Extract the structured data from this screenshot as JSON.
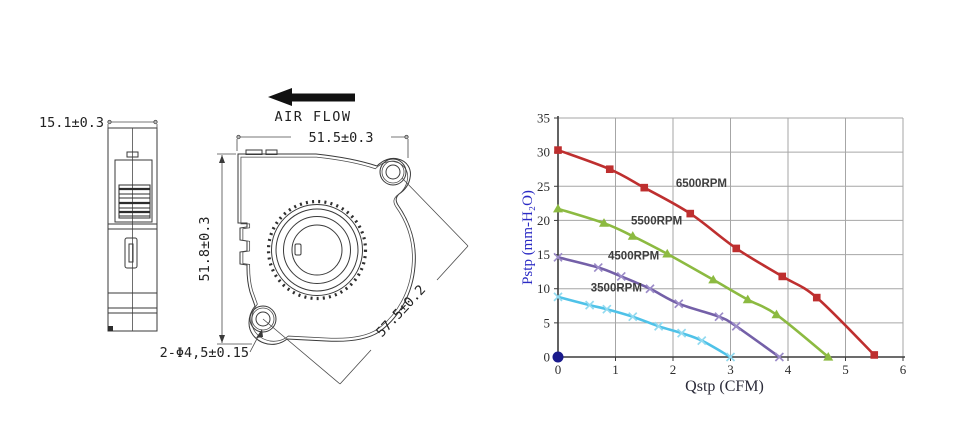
{
  "drawing": {
    "side_width_dim": "15.1±0.3",
    "air_flow_label": "AIR FLOW",
    "front_width_dim": "51.5±0.3",
    "front_height_dim": "51.8±0.3",
    "mount_hole_pitch_dim": "57.5±0.2",
    "mount_hole_dim": "2-Φ4,5±0.15"
  },
  "chart_data": {
    "type": "line",
    "title": "",
    "xlabel": "Qstp (CFM)",
    "ylabel": "Pstp (mm-H₂O)",
    "xlim": [
      0,
      6
    ],
    "ylim": [
      0,
      35
    ],
    "xticks": [
      0,
      1,
      2,
      3,
      4,
      5,
      6
    ],
    "yticks": [
      0,
      5,
      10,
      15,
      20,
      25,
      30,
      35
    ],
    "grid": true,
    "legend_position": "inline-labels",
    "colors": {
      "grid": "#a6a6a6",
      "axis": "#3c3c3c",
      "tick_text": "#2e2e2e",
      "xlabel_text": "#2a2a38",
      "ylabel_text": "#2b2bc4",
      "series_label_text": "#3e3e3e",
      "origin_dot": "#1a1a8c"
    },
    "origin_point": [
      0,
      0
    ],
    "series": [
      {
        "name": "6500RPM",
        "color": "#be2f2f",
        "marker": "square",
        "marker_color": "#be2f2f",
        "label_pos": [
          2.05,
          24.9
        ],
        "points": [
          [
            0,
            30.3
          ],
          [
            0.9,
            27.5
          ],
          [
            1.5,
            24.8
          ],
          [
            2.3,
            21.0
          ],
          [
            3.1,
            15.9
          ],
          [
            3.9,
            11.8
          ],
          [
            4.5,
            8.7
          ],
          [
            5.5,
            0.3
          ]
        ]
      },
      {
        "name": "5500RPM",
        "color": "#8cba41",
        "marker": "triangle",
        "marker_color": "#8cba41",
        "label_pos": [
          1.27,
          19.4
        ],
        "points": [
          [
            0,
            21.7
          ],
          [
            0.8,
            19.6
          ],
          [
            1.3,
            17.7
          ],
          [
            1.9,
            15.1
          ],
          [
            2.7,
            11.3
          ],
          [
            3.3,
            8.4
          ],
          [
            3.8,
            6.2
          ],
          [
            4.7,
            0
          ]
        ]
      },
      {
        "name": "4500RPM",
        "color": "#7460a8",
        "marker": "x",
        "marker_color": "#9c8cc8",
        "label_pos": [
          0.87,
          14.3
        ],
        "points": [
          [
            0,
            14.6
          ],
          [
            0.7,
            13.1
          ],
          [
            1.1,
            11.8
          ],
          [
            1.6,
            10.0
          ],
          [
            2.1,
            7.8
          ],
          [
            2.8,
            5.9
          ],
          [
            3.1,
            4.5
          ],
          [
            3.85,
            0
          ]
        ]
      },
      {
        "name": "3500RPM",
        "color": "#4fc2e8",
        "marker": "x",
        "marker_color": "#92daf0",
        "label_pos": [
          0.57,
          9.6
        ],
        "points": [
          [
            0,
            8.8
          ],
          [
            0.55,
            7.6
          ],
          [
            0.85,
            7.0
          ],
          [
            1.3,
            5.9
          ],
          [
            1.75,
            4.5
          ],
          [
            2.15,
            3.5
          ],
          [
            2.5,
            2.4
          ],
          [
            3.0,
            0
          ]
        ]
      }
    ]
  }
}
